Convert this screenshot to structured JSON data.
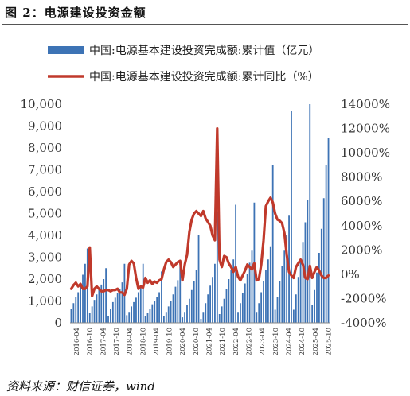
{
  "figure": {
    "title": "图 2：电源建设投资金额",
    "source": "资料来源：财信证券，wind"
  },
  "chart_data": {
    "type": "bar",
    "title": "",
    "legend_position": "top",
    "x_ticks": [
      "2016-04",
      "2016-10",
      "2017-04",
      "2017-10",
      "2018-04",
      "2018-10",
      "2019-04",
      "2019-10",
      "2020-04",
      "2020-10",
      "2021-04",
      "2021-10",
      "2022-04",
      "2022-10",
      "2023-04",
      "2023-10",
      "2024-04",
      "2024-10",
      "2025-04",
      "2025-10"
    ],
    "y_left": {
      "ticks": [
        "0",
        "1,000",
        "2,000",
        "3,000",
        "4,000",
        "5,000",
        "6,000",
        "7,000",
        "8,000",
        "9,000",
        "10,000"
      ],
      "lim": [
        0,
        10000
      ]
    },
    "y_right": {
      "ticks": [
        "-4000%",
        "-2000%",
        "0%",
        "2000%",
        "4000%",
        "6000%",
        "8000%",
        "10000%",
        "12000%",
        "14000%"
      ],
      "lim": [
        -4000,
        14000
      ]
    },
    "series": [
      {
        "name": "中国:电源基本建设投资完成额:累计值（亿元）",
        "type": "bar",
        "axis": "left",
        "color": "#3d73b5",
        "values": [
          650,
          900,
          1200,
          1400,
          1650,
          2200,
          2700,
          3400,
          450,
          750,
          1050,
          1300,
          1550,
          1750,
          2000,
          2500,
          300,
          650,
          950,
          1150,
          1350,
          1550,
          1850,
          2700,
          350,
          500,
          750,
          950,
          1150,
          1400,
          1650,
          2700,
          300,
          450,
          650,
          850,
          1000,
          1200,
          1400,
          2350,
          300,
          500,
          750,
          1000,
          1300,
          1650,
          1950,
          2600,
          250,
          500,
          800,
          1100,
          1500,
          1900,
          2400,
          4000,
          180,
          500,
          900,
          1300,
          1700,
          2100,
          2700,
          5100,
          400,
          750,
          1100,
          1550,
          2000,
          2400,
          2900,
          5400,
          500,
          900,
          1350,
          1800,
          2250,
          2750,
          3300,
          5500,
          500,
          900,
          1400,
          1900,
          2400,
          2900,
          3500,
          7200,
          600,
          1200,
          1900,
          2600,
          3300,
          4000,
          4900,
          9700,
          600,
          1300,
          2100,
          2900,
          3700,
          4600,
          5600,
          10000,
          800,
          1500,
          2300,
          3200,
          4300,
          5700,
          7200,
          8450
        ]
      },
      {
        "name": "中国:电源基本建设投资完成额:累计同比（%）",
        "type": "line",
        "axis": "right",
        "color": "#c0392b",
        "values": [
          -1200,
          -900,
          -700,
          -1000,
          -800,
          -1200,
          -1200,
          -1000,
          2200,
          -1800,
          -1200,
          -1000,
          -1200,
          -1400,
          -1400,
          -1300,
          -1300,
          -1400,
          -1300,
          -1300,
          -1200,
          -1500,
          -1500,
          -1700,
          -1200,
          800,
          1100,
          900,
          -300,
          -1200,
          -1000,
          -1100,
          -300,
          -700,
          -500,
          -800,
          -600,
          -700,
          -500,
          -400,
          400,
          1000,
          1200,
          1000,
          600,
          800,
          1000,
          1100,
          -500,
          800,
          1600,
          3500,
          4500,
          5000,
          5200,
          5000,
          4800,
          5200,
          4600,
          4300,
          4000,
          3200,
          2800,
          12000,
          1200,
          600,
          1500,
          1400,
          900,
          600,
          200,
          600,
          -200,
          -500,
          -100,
          300,
          800,
          600,
          400,
          900,
          -500,
          -400,
          800,
          2800,
          5600,
          6000,
          6300,
          5900,
          5000,
          4500,
          4400,
          4200,
          3400,
          1600,
          200,
          -100,
          -300,
          600,
          900,
          1200,
          800,
          -300,
          -400,
          700,
          -300,
          200,
          600,
          300,
          -100,
          -300,
          -300,
          -100
        ]
      }
    ]
  }
}
